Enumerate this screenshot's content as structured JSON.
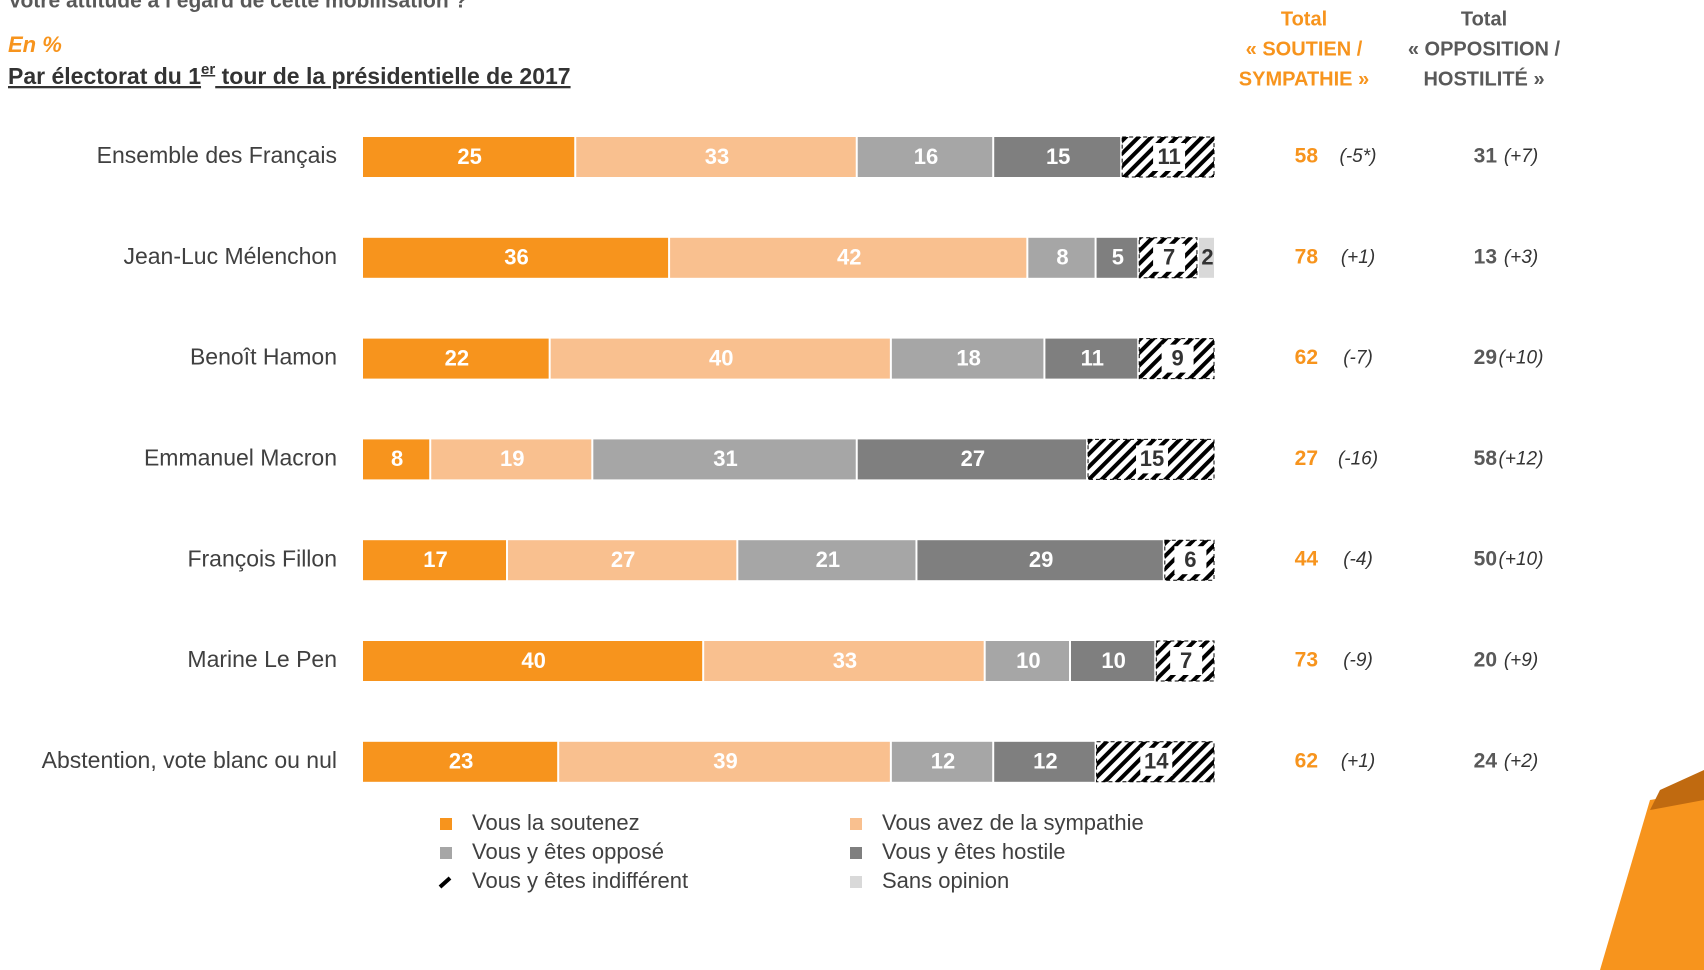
{
  "chart_data": {
    "type": "stacked-bar-horizontal",
    "title": "Votre attitude à l’égard de cette mobilisation ?",
    "unit_note": "En %",
    "subtitle": [
      "Par électorat du 1",
      "er",
      " tour de la présidentielle de 2017"
    ],
    "categories": [
      "Ensemble des Français",
      "Jean-Luc Mélenchon",
      "Benoît Hamon",
      "Emmanuel Macron",
      "François Fillon",
      "Marine Le Pen",
      "Abstention, vote blanc ou nul"
    ],
    "xlim": [
      0,
      100
    ],
    "series": [
      {
        "name": "Vous la soutenez",
        "color": "#f7941d",
        "values": [
          25,
          36,
          22,
          8,
          17,
          40,
          23
        ]
      },
      {
        "name": "Vous avez de la sympathie",
        "color": "#f9c08f",
        "values": [
          33,
          42,
          40,
          19,
          27,
          33,
          39
        ]
      },
      {
        "name": "Vous y êtes opposé",
        "color": "#a6a6a6",
        "values": [
          16,
          8,
          18,
          31,
          21,
          10,
          12
        ]
      },
      {
        "name": "Vous y êtes hostile",
        "color": "#7f7f7f",
        "values": [
          15,
          5,
          11,
          27,
          29,
          10,
          12
        ]
      },
      {
        "name": "Vous y êtes indifférent",
        "color": "#000000",
        "pattern": "hatch",
        "values": [
          11,
          7,
          9,
          15,
          6,
          7,
          14
        ]
      },
      {
        "name": "Sans opinion",
        "color": "#d9d9d9",
        "values": [
          null,
          2,
          null,
          null,
          null,
          null,
          null
        ]
      }
    ],
    "totals": [
      {
        "header": [
          "Total",
          "« SOUTIEN /",
          "SYMPATHIE »"
        ],
        "color": "#f7941d",
        "values": [
          58,
          78,
          62,
          27,
          44,
          73,
          62
        ],
        "changes": [
          "(-5*)",
          "(+1)",
          "(-7)",
          "(-16)",
          "(-4)",
          "(-9)",
          "(+1)"
        ]
      },
      {
        "header": [
          "Total",
          "« OPPOSITION /",
          "HOSTILITÉ »"
        ],
        "color": "#595959",
        "values": [
          31,
          13,
          29,
          58,
          50,
          20,
          24
        ],
        "changes": [
          "(+7)",
          "(+3)",
          "(+10)",
          "(+12)",
          "(+10)",
          "(+9)",
          "(+2)"
        ]
      }
    ]
  }
}
